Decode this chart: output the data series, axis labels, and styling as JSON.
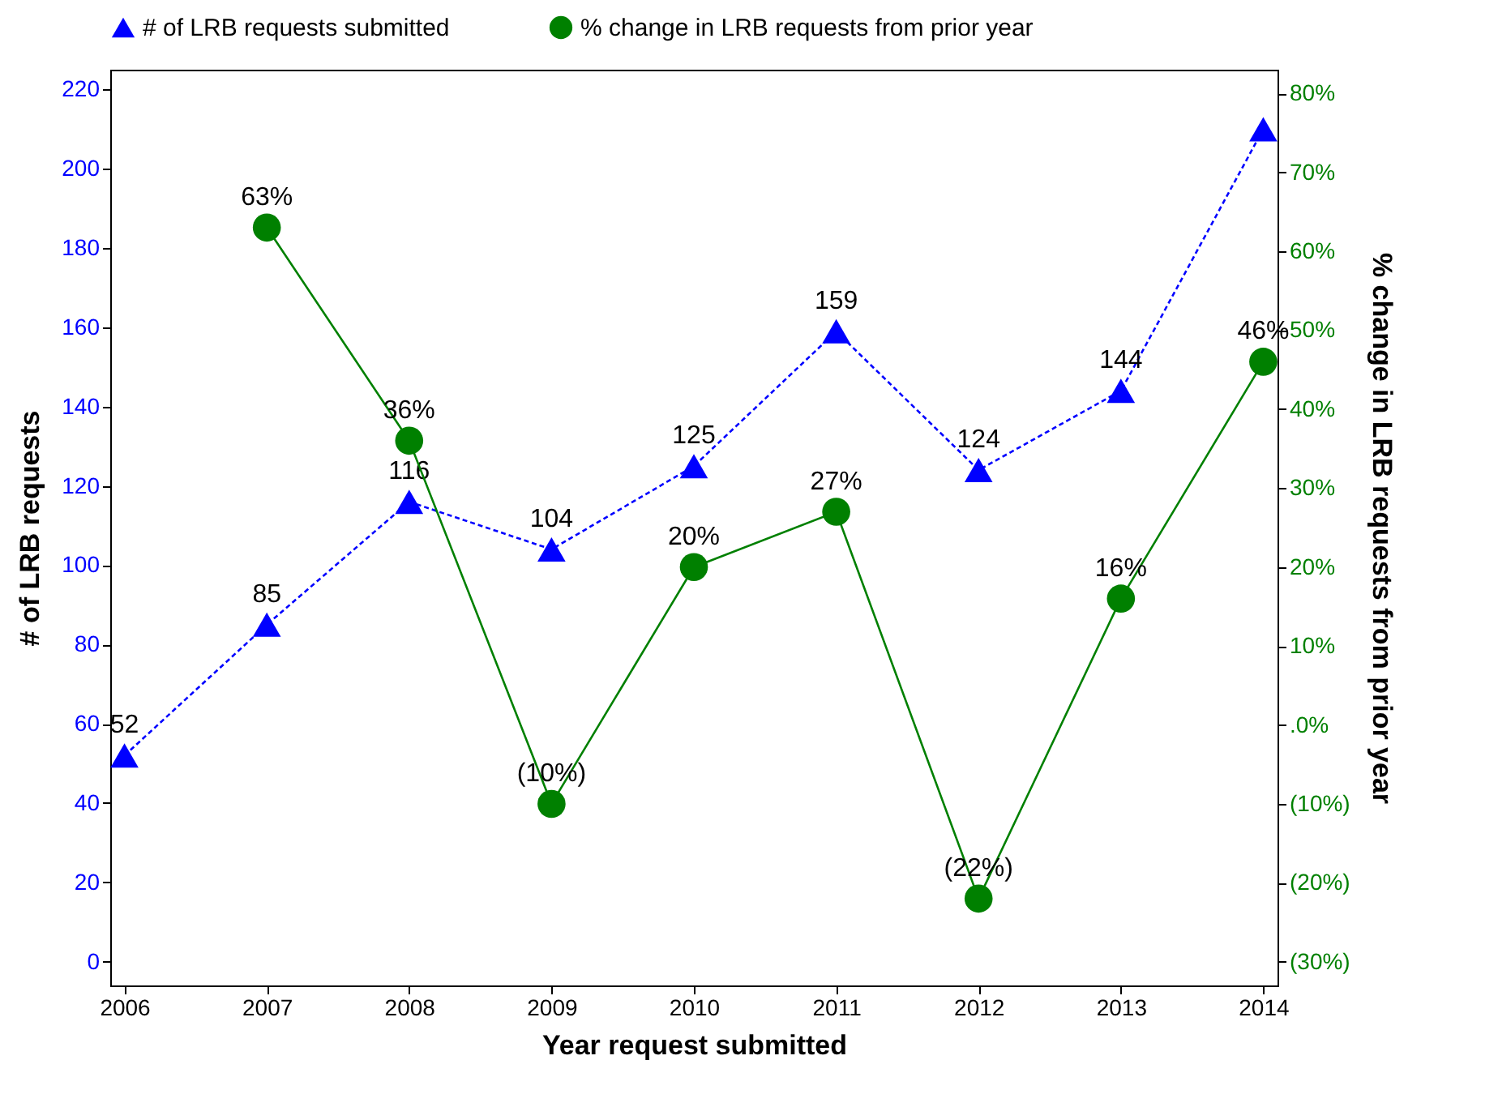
{
  "chart_data": {
    "type": "line",
    "xlabel": "Year request submitted",
    "ylabel": "# of LRB requests",
    "y2label": "% change in LRB requests from prior year",
    "x": [
      2006,
      2007,
      2008,
      2009,
      2010,
      2011,
      2012,
      2013,
      2014
    ],
    "xlim": [
      2005.9,
      2014.1
    ],
    "xticks": [
      2006,
      2007,
      2008,
      2009,
      2010,
      2011,
      2012,
      2013,
      2014
    ],
    "ylim": [
      -6,
      225
    ],
    "yticks": [
      0,
      20,
      40,
      60,
      80,
      100,
      120,
      140,
      160,
      180,
      200,
      220
    ],
    "y2lim": [
      -33,
      83
    ],
    "y2ticks": [
      {
        "value": -30,
        "label": "(30%)"
      },
      {
        "value": -20,
        "label": "(20%)"
      },
      {
        "value": -10,
        "label": "(10%)"
      },
      {
        "value": 0,
        "label": ".0%"
      },
      {
        "value": 10,
        "label": "10%"
      },
      {
        "value": 20,
        "label": "20%"
      },
      {
        "value": 30,
        "label": "30%"
      },
      {
        "value": 40,
        "label": "40%"
      },
      {
        "value": 50,
        "label": "50%"
      },
      {
        "value": 60,
        "label": "60%"
      },
      {
        "value": 70,
        "label": "70%"
      },
      {
        "value": 80,
        "label": "80%"
      }
    ],
    "grid": false,
    "legend": "top",
    "series": [
      {
        "name": "# of LRB requests submitted",
        "color": "#0000ff",
        "marker": "triangle",
        "line_style": "dashed",
        "values": [
          52,
          85,
          116,
          104,
          125,
          159,
          124,
          144,
          210
        ],
        "value_labels": [
          "52",
          "85",
          "116",
          "104",
          "125",
          "159",
          "124",
          "144",
          null
        ]
      },
      {
        "name": "% change in LRB requests from prior year",
        "color": "#008000",
        "marker": "circle",
        "line_style": "solid",
        "axis": "y2",
        "values": [
          null,
          63,
          36,
          -10,
          20,
          27,
          -22,
          16,
          46
        ],
        "value_labels": [
          null,
          "63%",
          "36%",
          "(10%)",
          "20%",
          "27%",
          "(22%)",
          "16%",
          "46%"
        ]
      }
    ]
  }
}
